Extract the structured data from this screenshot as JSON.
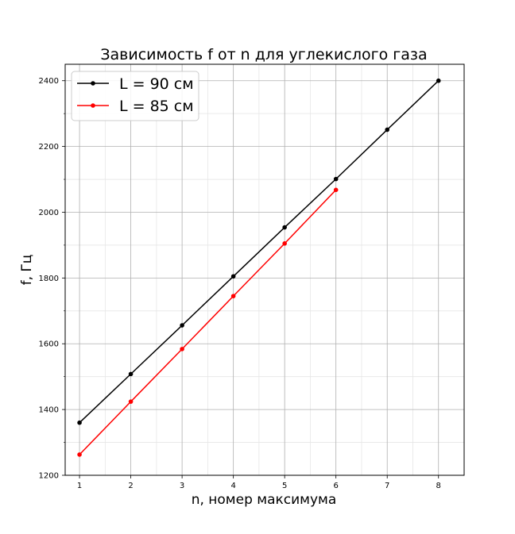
{
  "chart_data": {
    "type": "line",
    "title": "Зависимость f от n для углекислого газа",
    "xlabel": "n, номер максимума",
    "ylabel": "f, Гц",
    "xlim": [
      0.72,
      8.5
    ],
    "ylim": [
      1200,
      2450
    ],
    "xticks": [
      1,
      2,
      3,
      4,
      5,
      6,
      7,
      8
    ],
    "yticks": [
      1200,
      1400,
      1600,
      1800,
      2000,
      2200,
      2400
    ],
    "grid": true,
    "minor_grid": true,
    "legend_position": "top-left",
    "series": [
      {
        "name": "L = 90 см",
        "color": "#000000",
        "marker": "circle",
        "x": [
          1,
          2,
          3,
          4,
          5,
          6,
          7,
          8
        ],
        "y": [
          1360,
          1508,
          1656,
          1805,
          1954,
          2101,
          2251,
          2400
        ]
      },
      {
        "name": "L = 85 см",
        "color": "#ff0000",
        "marker": "circle",
        "x": [
          1,
          2,
          3,
          4,
          5,
          6
        ],
        "y": [
          1263,
          1424,
          1584,
          1745,
          1905,
          2068
        ]
      }
    ]
  }
}
